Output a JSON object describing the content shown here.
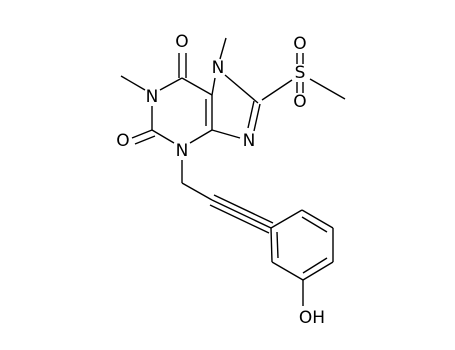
{
  "atoms": [
    "O",
    "N",
    "N",
    "O",
    "N",
    "N",
    "S",
    "O",
    "O",
    "OH"
  ]
}
